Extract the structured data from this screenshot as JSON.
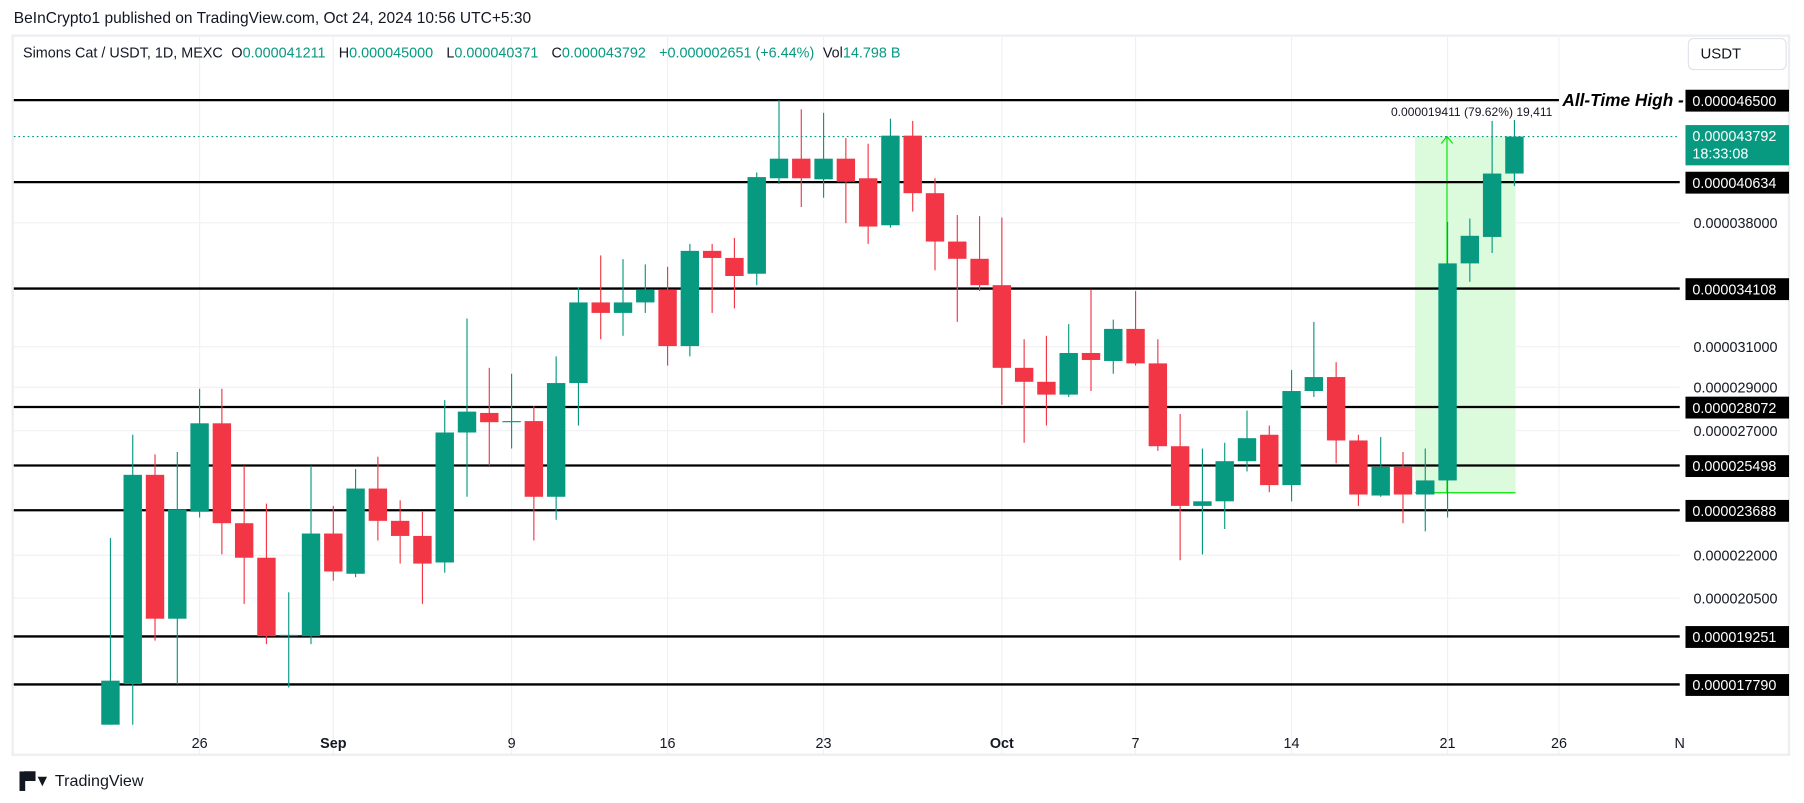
{
  "header": {
    "published": "BeInCrypto1 published on TradingView.com, Oct 24, 2024 10:56 UTC+5:30"
  },
  "legend": {
    "symbol": "Simons Cat / USDT, 1D, MEXC",
    "o_label": "O",
    "o": "0.000041211",
    "h_label": "H",
    "h": "0.000045000",
    "l_label": "L",
    "l": "0.000040371",
    "c_label": "C",
    "c": "0.000043792",
    "change": "+0.000002651 (+6.44%)",
    "vol_label": "Vol",
    "vol": "14.798 B"
  },
  "currency_button": "USDT",
  "footer": {
    "brand": "TradingView"
  },
  "colors": {
    "up": "#089981",
    "down": "#f23645",
    "measure": "#00e600",
    "measure_fill": "#dcfadc",
    "level": "#000000"
  },
  "chart_data": {
    "type": "candlestick",
    "title": "Simons Cat / USDT, 1D, MEXC",
    "yscale": "log",
    "ylim": [
      1.66e-05,
      4.7e-05
    ],
    "xlabel": "",
    "ylabel": "",
    "x_ticks": [
      {
        "label": "26",
        "index": 4,
        "bold": false
      },
      {
        "label": "Sep",
        "index": 10,
        "bold": true
      },
      {
        "label": "9",
        "index": 18,
        "bold": false
      },
      {
        "label": "16",
        "index": 25,
        "bold": false
      },
      {
        "label": "23",
        "index": 32,
        "bold": false
      },
      {
        "label": "Oct",
        "index": 40,
        "bold": true
      },
      {
        "label": "7",
        "index": 46,
        "bold": false
      },
      {
        "label": "14",
        "index": 53,
        "bold": false
      },
      {
        "label": "21",
        "index": 60,
        "bold": false
      },
      {
        "label": "26",
        "index": 65,
        "bold": false
      },
      {
        "label": "N",
        "index": 71,
        "bold": false
      }
    ],
    "y_ticks": [
      {
        "label": "0.000038000",
        "value": 3.8e-05
      },
      {
        "label": "0.000031000",
        "value": 3.1e-05
      },
      {
        "label": "0.000029000",
        "value": 2.9e-05
      },
      {
        "label": "0.000027000",
        "value": 2.7e-05
      },
      {
        "label": "0.000022000",
        "value": 2.2e-05
      },
      {
        "label": "0.000020500",
        "value": 2.05e-05
      }
    ],
    "levels": [
      {
        "label": "0.000046500",
        "value": 4.65e-05,
        "note": "All-Time High -"
      },
      {
        "label": "0.000040634",
        "value": 4.0634e-05
      },
      {
        "label": "0.000034108",
        "value": 3.4108e-05
      },
      {
        "label": "0.000028072",
        "value": 2.8072e-05
      },
      {
        "label": "0.000025498",
        "value": 2.5498e-05
      },
      {
        "label": "0.000023688",
        "value": 2.3688e-05
      },
      {
        "label": "0.000019251",
        "value": 1.9251e-05
      },
      {
        "label": "0.000017790",
        "value": 1.779e-05
      }
    ],
    "last_price": {
      "label": "0.000043792",
      "value": 4.3792e-05,
      "countdown": "18:33:08"
    },
    "measure": {
      "label": "0.000019411 (79.62%) 19,411",
      "from_index": 59,
      "to_index": 63,
      "from_value": 2.4381e-05,
      "to_value": 4.3792e-05
    },
    "start_date": "2024-08-22",
    "candles": [
      [
        1.665e-05,
        2.263e-05,
        1.665e-05,
        1.79e-05
      ],
      [
        1.78e-05,
        2.682e-05,
        1.665e-05,
        2.511e-05
      ],
      [
        2.511e-05,
        2.597e-05,
        1.912e-05,
        1.982e-05
      ],
      [
        1.982e-05,
        2.607e-05,
        1.78e-05,
        2.372e-05
      ],
      [
        2.363e-05,
        2.893e-05,
        2.341e-05,
        2.733e-05
      ],
      [
        2.733e-05,
        2.893e-05,
        2.203e-05,
        2.319e-05
      ],
      [
        2.319e-05,
        2.549e-05,
        2.031e-05,
        2.191e-05
      ],
      [
        2.191e-05,
        2.395e-05,
        1.901e-05,
        1.926e-05
      ],
      [
        1.926e-05,
        2.07e-05,
        1.77e-05,
        1.93e-05
      ],
      [
        1.926e-05,
        2.549e-05,
        1.901e-05,
        2.28e-05
      ],
      [
        2.28e-05,
        2.386e-05,
        2.11e-05,
        2.142e-05
      ],
      [
        2.134e-05,
        2.535e-05,
        2.122e-05,
        2.455e-05
      ],
      [
        2.455e-05,
        2.587e-05,
        2.254e-05,
        2.328e-05
      ],
      [
        2.328e-05,
        2.408e-05,
        2.17e-05,
        2.271e-05
      ],
      [
        2.271e-05,
        2.363e-05,
        2.031e-05,
        2.17e-05
      ],
      [
        2.174e-05,
        2.839e-05,
        2.138e-05,
        2.692e-05
      ],
      [
        2.692e-05,
        3.247e-05,
        2.422e-05,
        2.786e-05
      ],
      [
        2.78e-05,
        2.994e-05,
        2.549e-05,
        2.738e-05
      ],
      [
        2.743e-05,
        2.965e-05,
        2.622e-05,
        2.743e-05
      ],
      [
        2.743e-05,
        2.812e-05,
        2.254e-05,
        2.422e-05
      ],
      [
        2.422e-05,
        3.051e-05,
        2.332e-05,
        2.92e-05
      ],
      [
        2.92e-05,
        3.417e-05,
        2.723e-05,
        3.334e-05
      ],
      [
        3.334e-05,
        3.602e-05,
        3.138e-05,
        3.277e-05
      ],
      [
        3.277e-05,
        3.58e-05,
        3.156e-05,
        3.334e-05
      ],
      [
        3.334e-05,
        3.549e-05,
        3.277e-05,
        3.404e-05
      ],
      [
        3.404e-05,
        3.535e-05,
        3.005e-05,
        3.103e-05
      ],
      [
        3.103e-05,
        3.671e-05,
        3.051e-05,
        3.629e-05
      ],
      [
        3.629e-05,
        3.671e-05,
        3.277e-05,
        3.587e-05
      ],
      [
        3.587e-05,
        3.707e-05,
        3.301e-05,
        3.482e-05
      ],
      [
        3.495e-05,
        4.128e-05,
        3.43e-05,
        4.097e-05
      ],
      [
        4.089e-05,
        4.65e-05,
        4.051e-05,
        4.223e-05
      ],
      [
        4.223e-05,
        4.58e-05,
        3.9e-05,
        4.089e-05
      ],
      [
        4.082e-05,
        4.554e-05,
        3.96e-05,
        4.223e-05
      ],
      [
        4.223e-05,
        4.369e-05,
        3.798e-05,
        4.066e-05
      ],
      [
        4.089e-05,
        4.328e-05,
        3.671e-05,
        3.777e-05
      ],
      [
        3.785e-05,
        4.51e-05,
        3.77e-05,
        4.386e-05
      ],
      [
        4.386e-05,
        4.494e-05,
        3.871e-05,
        3.99e-05
      ],
      [
        3.99e-05,
        4.089e-05,
        3.515e-05,
        3.685e-05
      ],
      [
        3.685e-05,
        3.849e-05,
        3.229e-05,
        3.582e-05
      ],
      [
        3.582e-05,
        3.842e-05,
        3.397e-05,
        3.43e-05
      ],
      [
        3.43e-05,
        3.834e-05,
        2.817e-05,
        2.994e-05
      ],
      [
        2.994e-05,
        3.138e-05,
        2.647e-05,
        2.926e-05
      ],
      [
        2.926e-05,
        3.156e-05,
        2.723e-05,
        2.865e-05
      ],
      [
        2.865e-05,
        3.217e-05,
        2.854e-05,
        3.068e-05
      ],
      [
        3.068e-05,
        3.404e-05,
        2.882e-05,
        3.033e-05
      ],
      [
        3.028e-05,
        3.241e-05,
        2.965e-05,
        3.192e-05
      ],
      [
        3.192e-05,
        3.397e-05,
        3.005e-05,
        3.016e-05
      ],
      [
        3.016e-05,
        3.138e-05,
        2.612e-05,
        2.632e-05
      ],
      [
        2.632e-05,
        2.775e-05,
        2.182e-05,
        2.386e-05
      ],
      [
        2.386e-05,
        2.622e-05,
        2.203e-05,
        2.404e-05
      ],
      [
        2.404e-05,
        2.647e-05,
        2.297e-05,
        2.568e-05
      ],
      [
        2.568e-05,
        2.791e-05,
        2.525e-05,
        2.667e-05
      ],
      [
        2.682e-05,
        2.723e-05,
        2.44e-05,
        2.469e-05
      ],
      [
        2.469e-05,
        2.983e-05,
        2.404e-05,
        2.882e-05
      ],
      [
        2.882e-05,
        3.229e-05,
        2.854e-05,
        2.949e-05
      ],
      [
        2.949e-05,
        3.022e-05,
        2.559e-05,
        2.657e-05
      ],
      [
        2.657e-05,
        2.682e-05,
        2.386e-05,
        2.431e-05
      ],
      [
        2.427e-05,
        2.672e-05,
        2.422e-05,
        2.544e-05
      ],
      [
        2.544e-05,
        2.607e-05,
        2.319e-05,
        2.431e-05
      ],
      [
        2.431e-05,
        2.622e-05,
        2.288e-05,
        2.488e-05
      ],
      [
        2.488e-05,
        3.806e-05,
        2.341e-05,
        3.555e-05
      ],
      [
        3.555e-05,
        3.827e-05,
        3.449e-05,
        3.72e-05
      ],
      [
        3.713e-05,
        4.494e-05,
        3.616e-05,
        4.121e-05
      ],
      [
        4.1211e-05,
        4.5e-05,
        4.0371e-05,
        4.3792e-05
      ]
    ]
  }
}
